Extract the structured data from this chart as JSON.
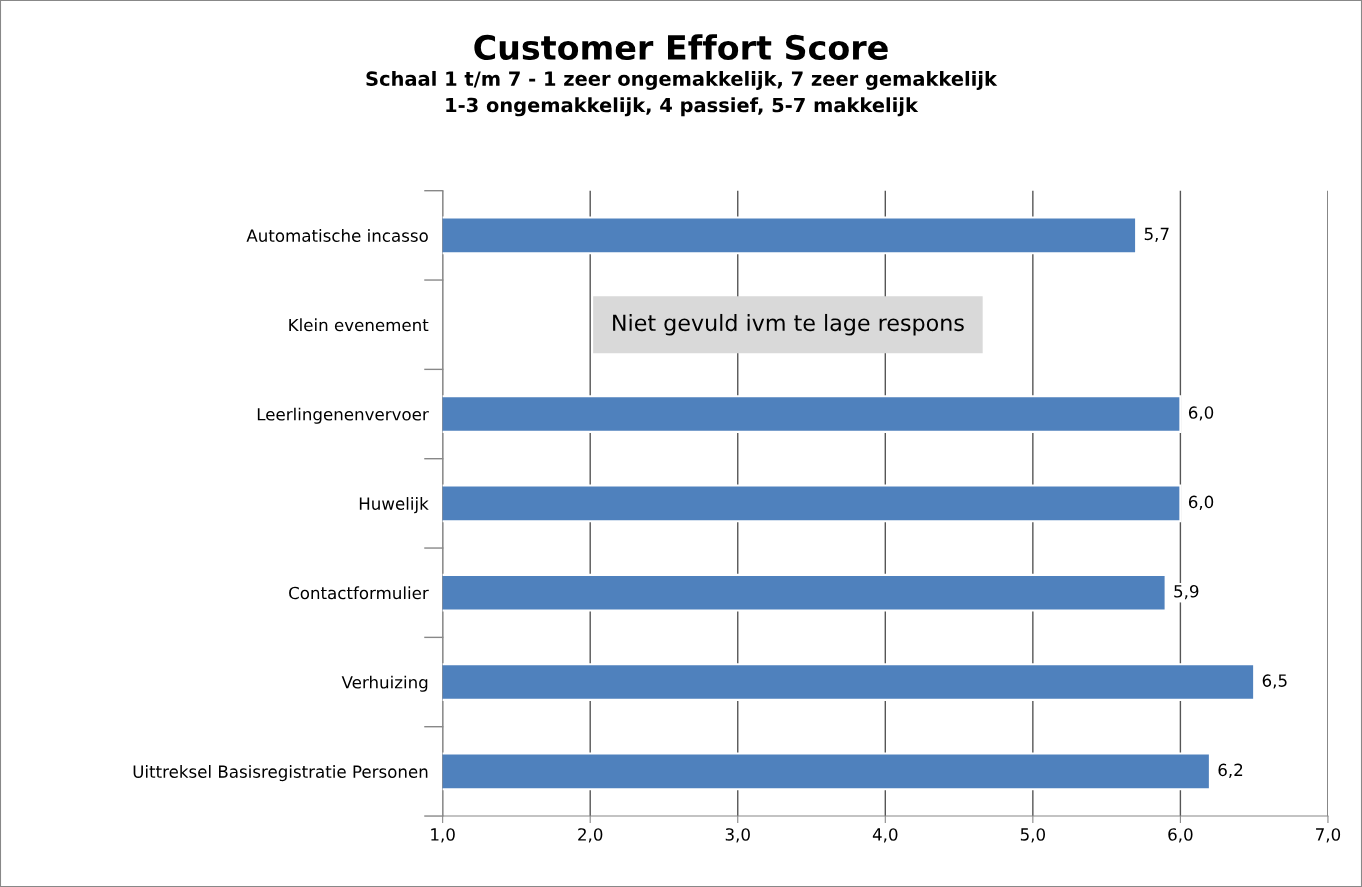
{
  "chart_data": {
    "type": "bar",
    "orientation": "horizontal",
    "title": "Customer Effort Score",
    "subtitle": "Schaal 1 t/m 7 - 1 zeer ongemakkelijk, 7 zeer gemakkelijk\n1-3 ongemakkelijk, 4 passief, 5-7 makkelijk",
    "categories": [
      "Automatische incasso",
      "Klein evenement",
      "Leerlingenenvervoer",
      "Huwelijk",
      "Contactformulier",
      "Verhuizing",
      "Uittreksel Basisregistratie Personen"
    ],
    "values": [
      5.7,
      null,
      6.0,
      6.0,
      5.9,
      6.5,
      6.2
    ],
    "value_labels": [
      "5,7",
      null,
      "6,0",
      "6,0",
      "5,9",
      "6,5",
      "6,2"
    ],
    "color": "#4f81bd",
    "xlim": [
      1,
      7
    ],
    "xticks": [
      {
        "value": 1,
        "label": "1,0"
      },
      {
        "value": 2,
        "label": "2,0"
      },
      {
        "value": 3,
        "label": "3,0"
      },
      {
        "value": 4,
        "label": "4,0"
      },
      {
        "value": 5,
        "label": "5,0"
      },
      {
        "value": 6,
        "label": "6,0"
      },
      {
        "value": 7,
        "label": "7,0"
      }
    ],
    "grid": "x",
    "legend": false,
    "annotations": [
      "Niet gevuld ivm te lage respons"
    ]
  }
}
